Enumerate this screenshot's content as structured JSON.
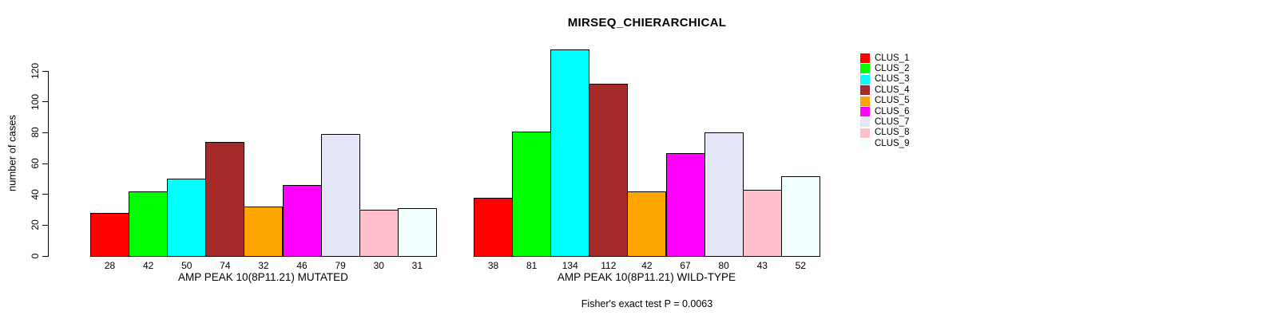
{
  "title": "MIRSEQ_CHIERARCHICAL",
  "footer": "Fisher's exact test P = 0.0063",
  "y_axis": {
    "label": "number of cases",
    "ticks": [
      0,
      20,
      40,
      60,
      80,
      100,
      120
    ]
  },
  "legend": {
    "items": [
      {
        "label": "CLUS_1",
        "color": "#FF0000"
      },
      {
        "label": "CLUS_2",
        "color": "#00FF00"
      },
      {
        "label": "CLUS_3",
        "color": "#00FFFF"
      },
      {
        "label": "CLUS_4",
        "color": "#A52A2A"
      },
      {
        "label": "CLUS_5",
        "color": "#FFA500"
      },
      {
        "label": "CLUS_6",
        "color": "#FF00FF"
      },
      {
        "label": "CLUS_7",
        "color": "#E6E6FA"
      },
      {
        "label": "CLUS_8",
        "color": "#FFC0CB"
      },
      {
        "label": "CLUS_9",
        "color": "#F0FFFF"
      }
    ]
  },
  "chart_data": {
    "type": "bar",
    "title": "MIRSEQ_CHIERARCHICAL",
    "ylabel": "number of cases",
    "ylim": [
      0,
      135
    ],
    "grid": false,
    "legend_position": "top-right",
    "categories": [
      "CLUS_1",
      "CLUS_2",
      "CLUS_3",
      "CLUS_4",
      "CLUS_5",
      "CLUS_6",
      "CLUS_7",
      "CLUS_8",
      "CLUS_9"
    ],
    "colors": [
      "#FF0000",
      "#00FF00",
      "#00FFFF",
      "#A52A2A",
      "#FFA500",
      "#FF00FF",
      "#E6E6FA",
      "#FFC0CB",
      "#F0FFFF"
    ],
    "groups": [
      {
        "label": "AMP PEAK 10(8P11.21) MUTATED",
        "values": [
          28,
          42,
          50,
          74,
          32,
          46,
          79,
          30,
          31
        ]
      },
      {
        "label": "AMP PEAK 10(8P11.21) WILD-TYPE",
        "values": [
          38,
          81,
          134,
          112,
          42,
          67,
          80,
          43,
          52
        ]
      }
    ],
    "annotation": "Fisher's exact test P = 0.0063"
  }
}
